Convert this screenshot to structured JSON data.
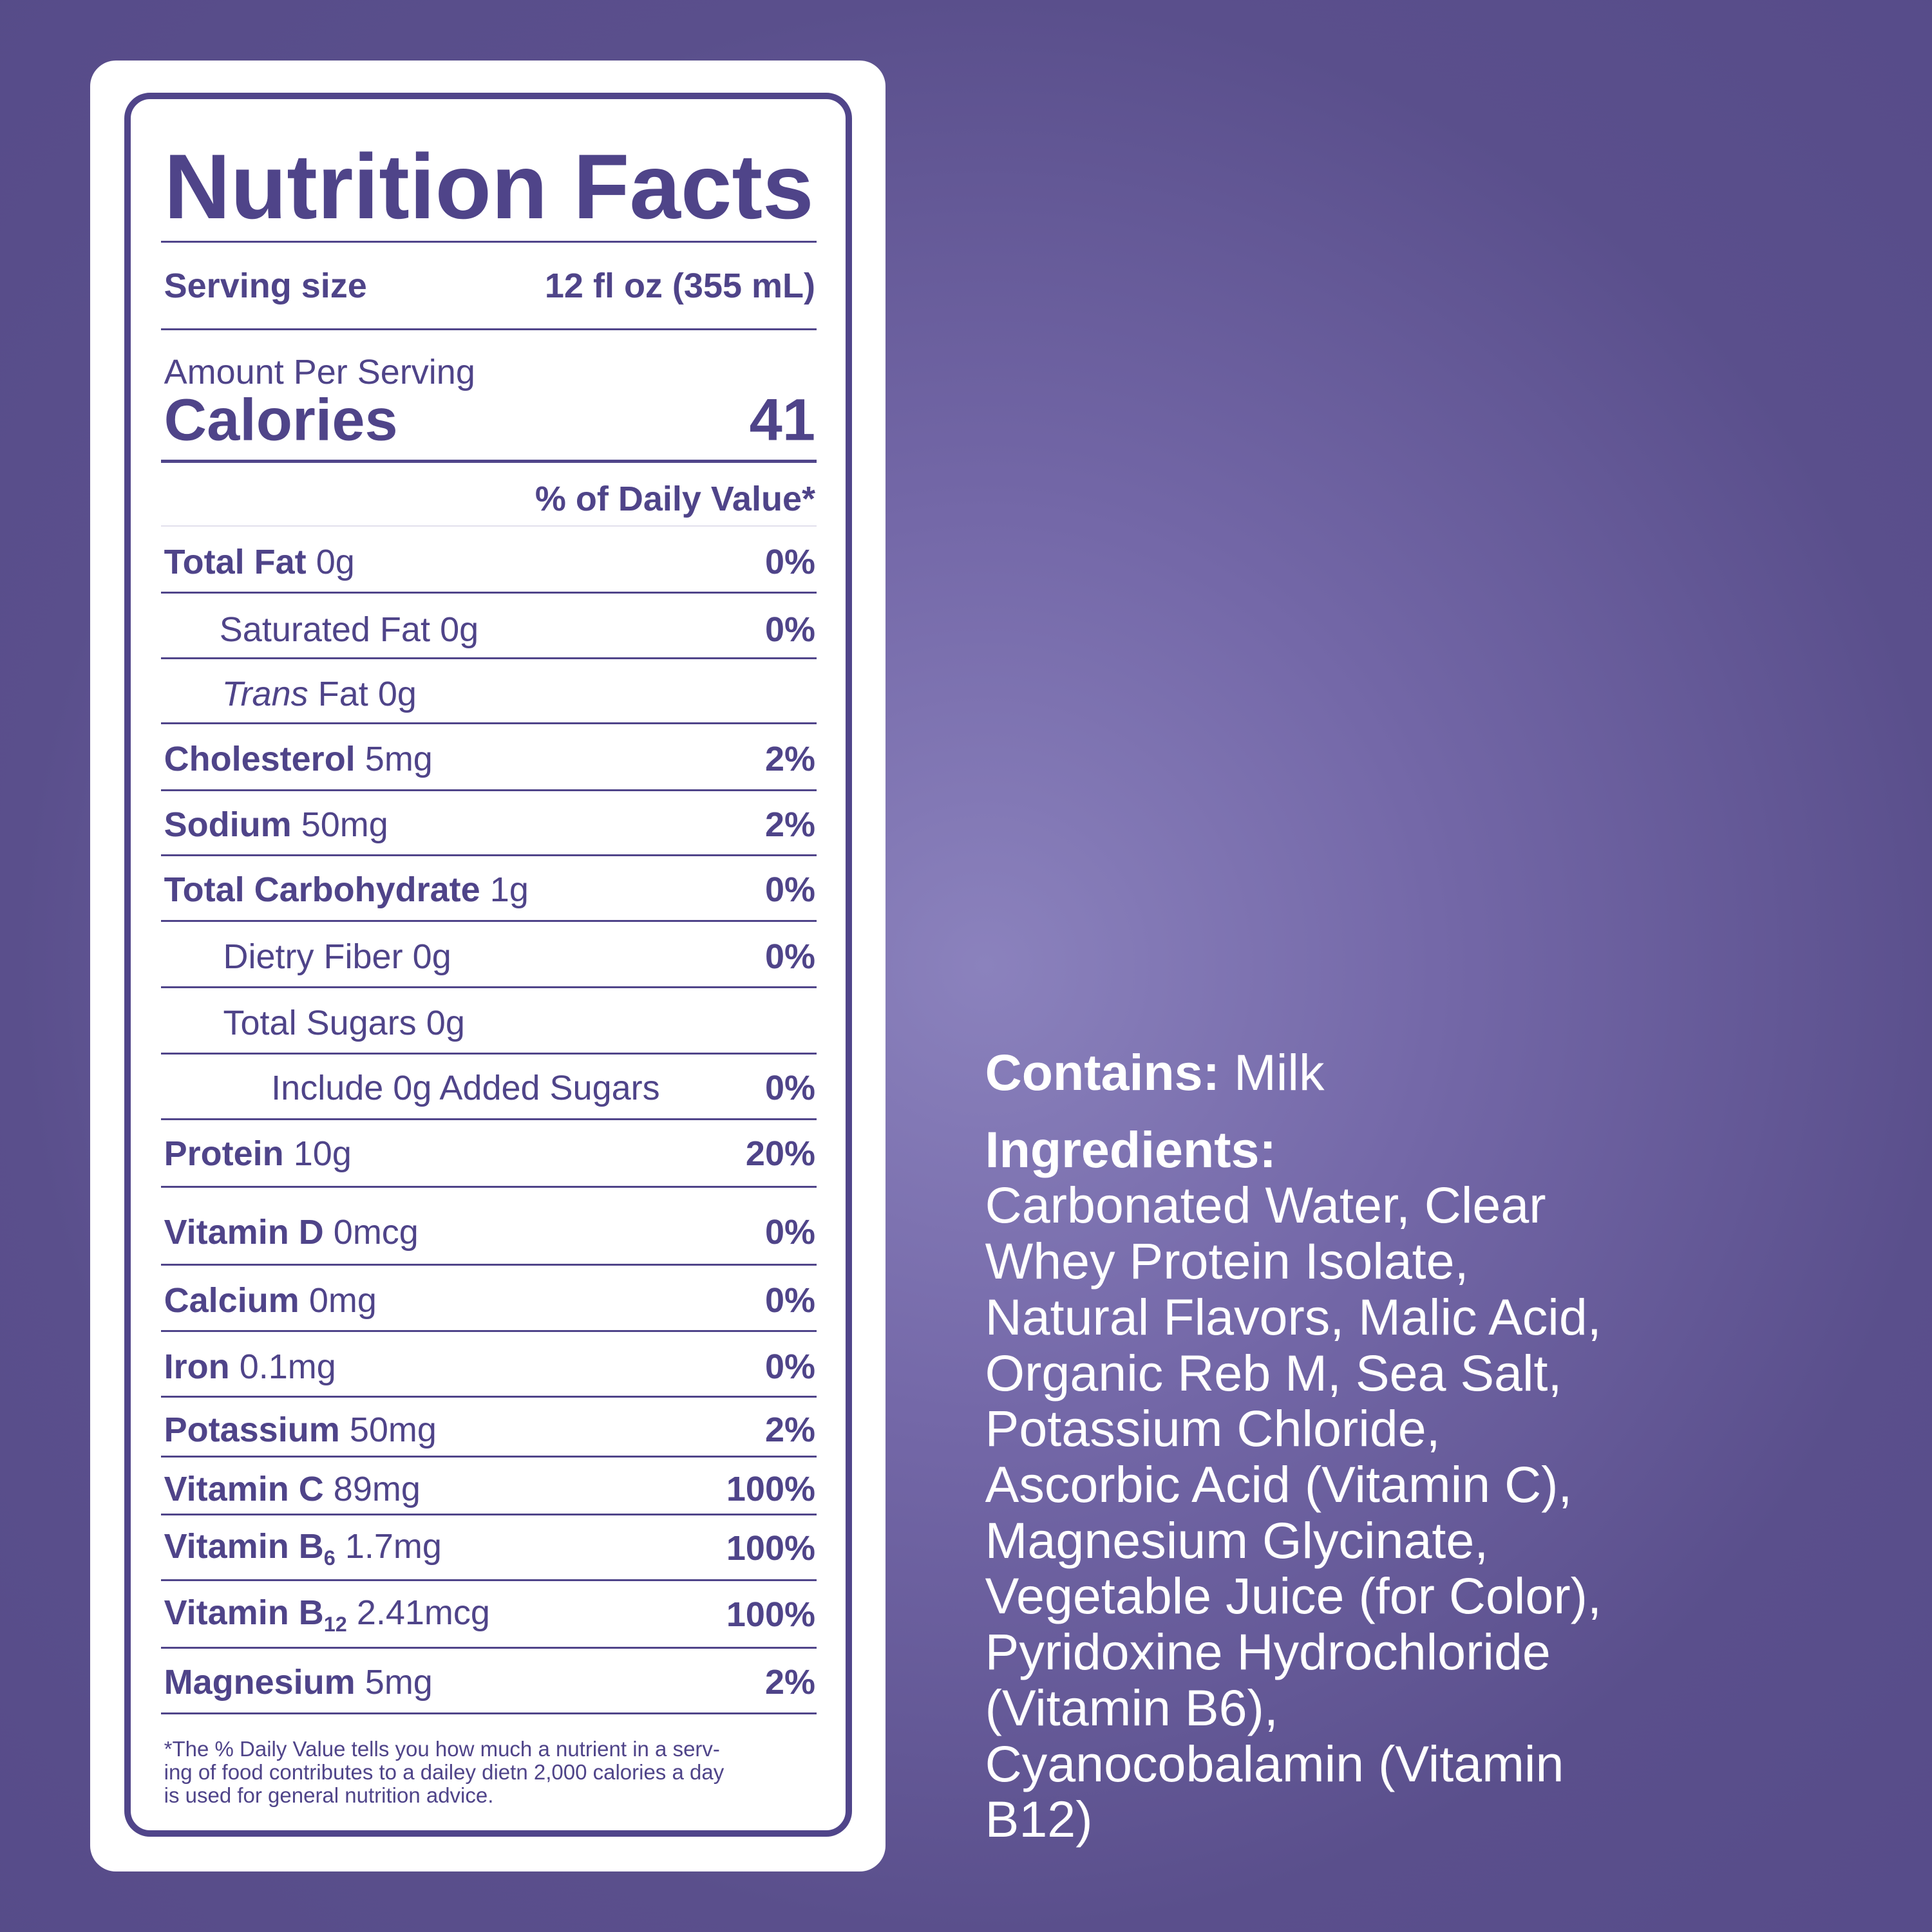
{
  "label": {
    "title": "Nutrition Facts",
    "serving_size": {
      "label": "Serving size",
      "value": "12 fl oz (355 mL)"
    },
    "amount_per_serving": "Amount Per Serving",
    "calories": {
      "label": "Calories",
      "value": 41
    },
    "daily_value_header": "% of Daily Value*",
    "rows": [
      {
        "name": "Total Fat",
        "amount": "0g",
        "dv": "0%"
      },
      {
        "name": "Saturated Fat",
        "amount": "0g",
        "dv": "0%"
      },
      {
        "italic": "Trans",
        "name": "Fat",
        "amount": "0g"
      },
      {
        "name": "Cholesterol",
        "amount": "5mg",
        "dv": "2%"
      },
      {
        "name": "Sodium",
        "amount": "50mg",
        "dv": "2%"
      },
      {
        "name": "Total Carbohydrate",
        "amount": "1g",
        "dv": "0%"
      },
      {
        "name": "Dietry Fiber",
        "amount": "0g",
        "dv": "0%"
      },
      {
        "name": "Total Sugars",
        "amount": "0g"
      },
      {
        "name": "Include 0g Added Sugars",
        "dv": "0%"
      },
      {
        "name": "Protein",
        "amount": "10g",
        "dv": "20%"
      },
      {
        "name": "Vitamin D",
        "amount": "0mcg",
        "dv": "0%"
      },
      {
        "name": "Calcium",
        "amount": "0mg",
        "dv": "0%"
      },
      {
        "name": "Iron",
        "amount": "0.1mg",
        "dv": "0%"
      },
      {
        "name": "Potassium",
        "amount": "50mg",
        "dv": "2%"
      },
      {
        "name": "Vitamin C",
        "amount": "89mg",
        "dv": "100%"
      },
      {
        "name": "Vitamin B",
        "subscript": "6",
        "amount": "1.7mg",
        "dv": "100%"
      },
      {
        "name": "Vitamin B",
        "subscript": "12",
        "amount": "2.41mcg",
        "dv": "100%"
      },
      {
        "name": "Magnesium",
        "amount": "5mg",
        "dv": "2%"
      }
    ],
    "footnote": [
      "*The % Daily Value tells you how much a nutrient in a serv-",
      "ing of food contributes to a dailey dietn 2,000 calories a day",
      "is used for general nutrition advice."
    ]
  },
  "contains": {
    "label": "Contains:",
    "value": "Milk"
  },
  "ingredients": {
    "label": "Ingredients:",
    "lines": [
      "Carbonated Water, Clear",
      "Whey Protein Isolate,",
      "Natural Flavors, Malic Acid,",
      "Organic Reb M, Sea Salt,",
      "Potassium Chloride,",
      "Ascorbic Acid (Vitamin C),",
      "Magnesium Glycinate,",
      "Vegetable Juice (for Color),",
      "Pyridoxine Hydrochloride",
      "(Vitamin B6),",
      "Cyanocobalamin (Vitamin",
      "B12)"
    ]
  }
}
